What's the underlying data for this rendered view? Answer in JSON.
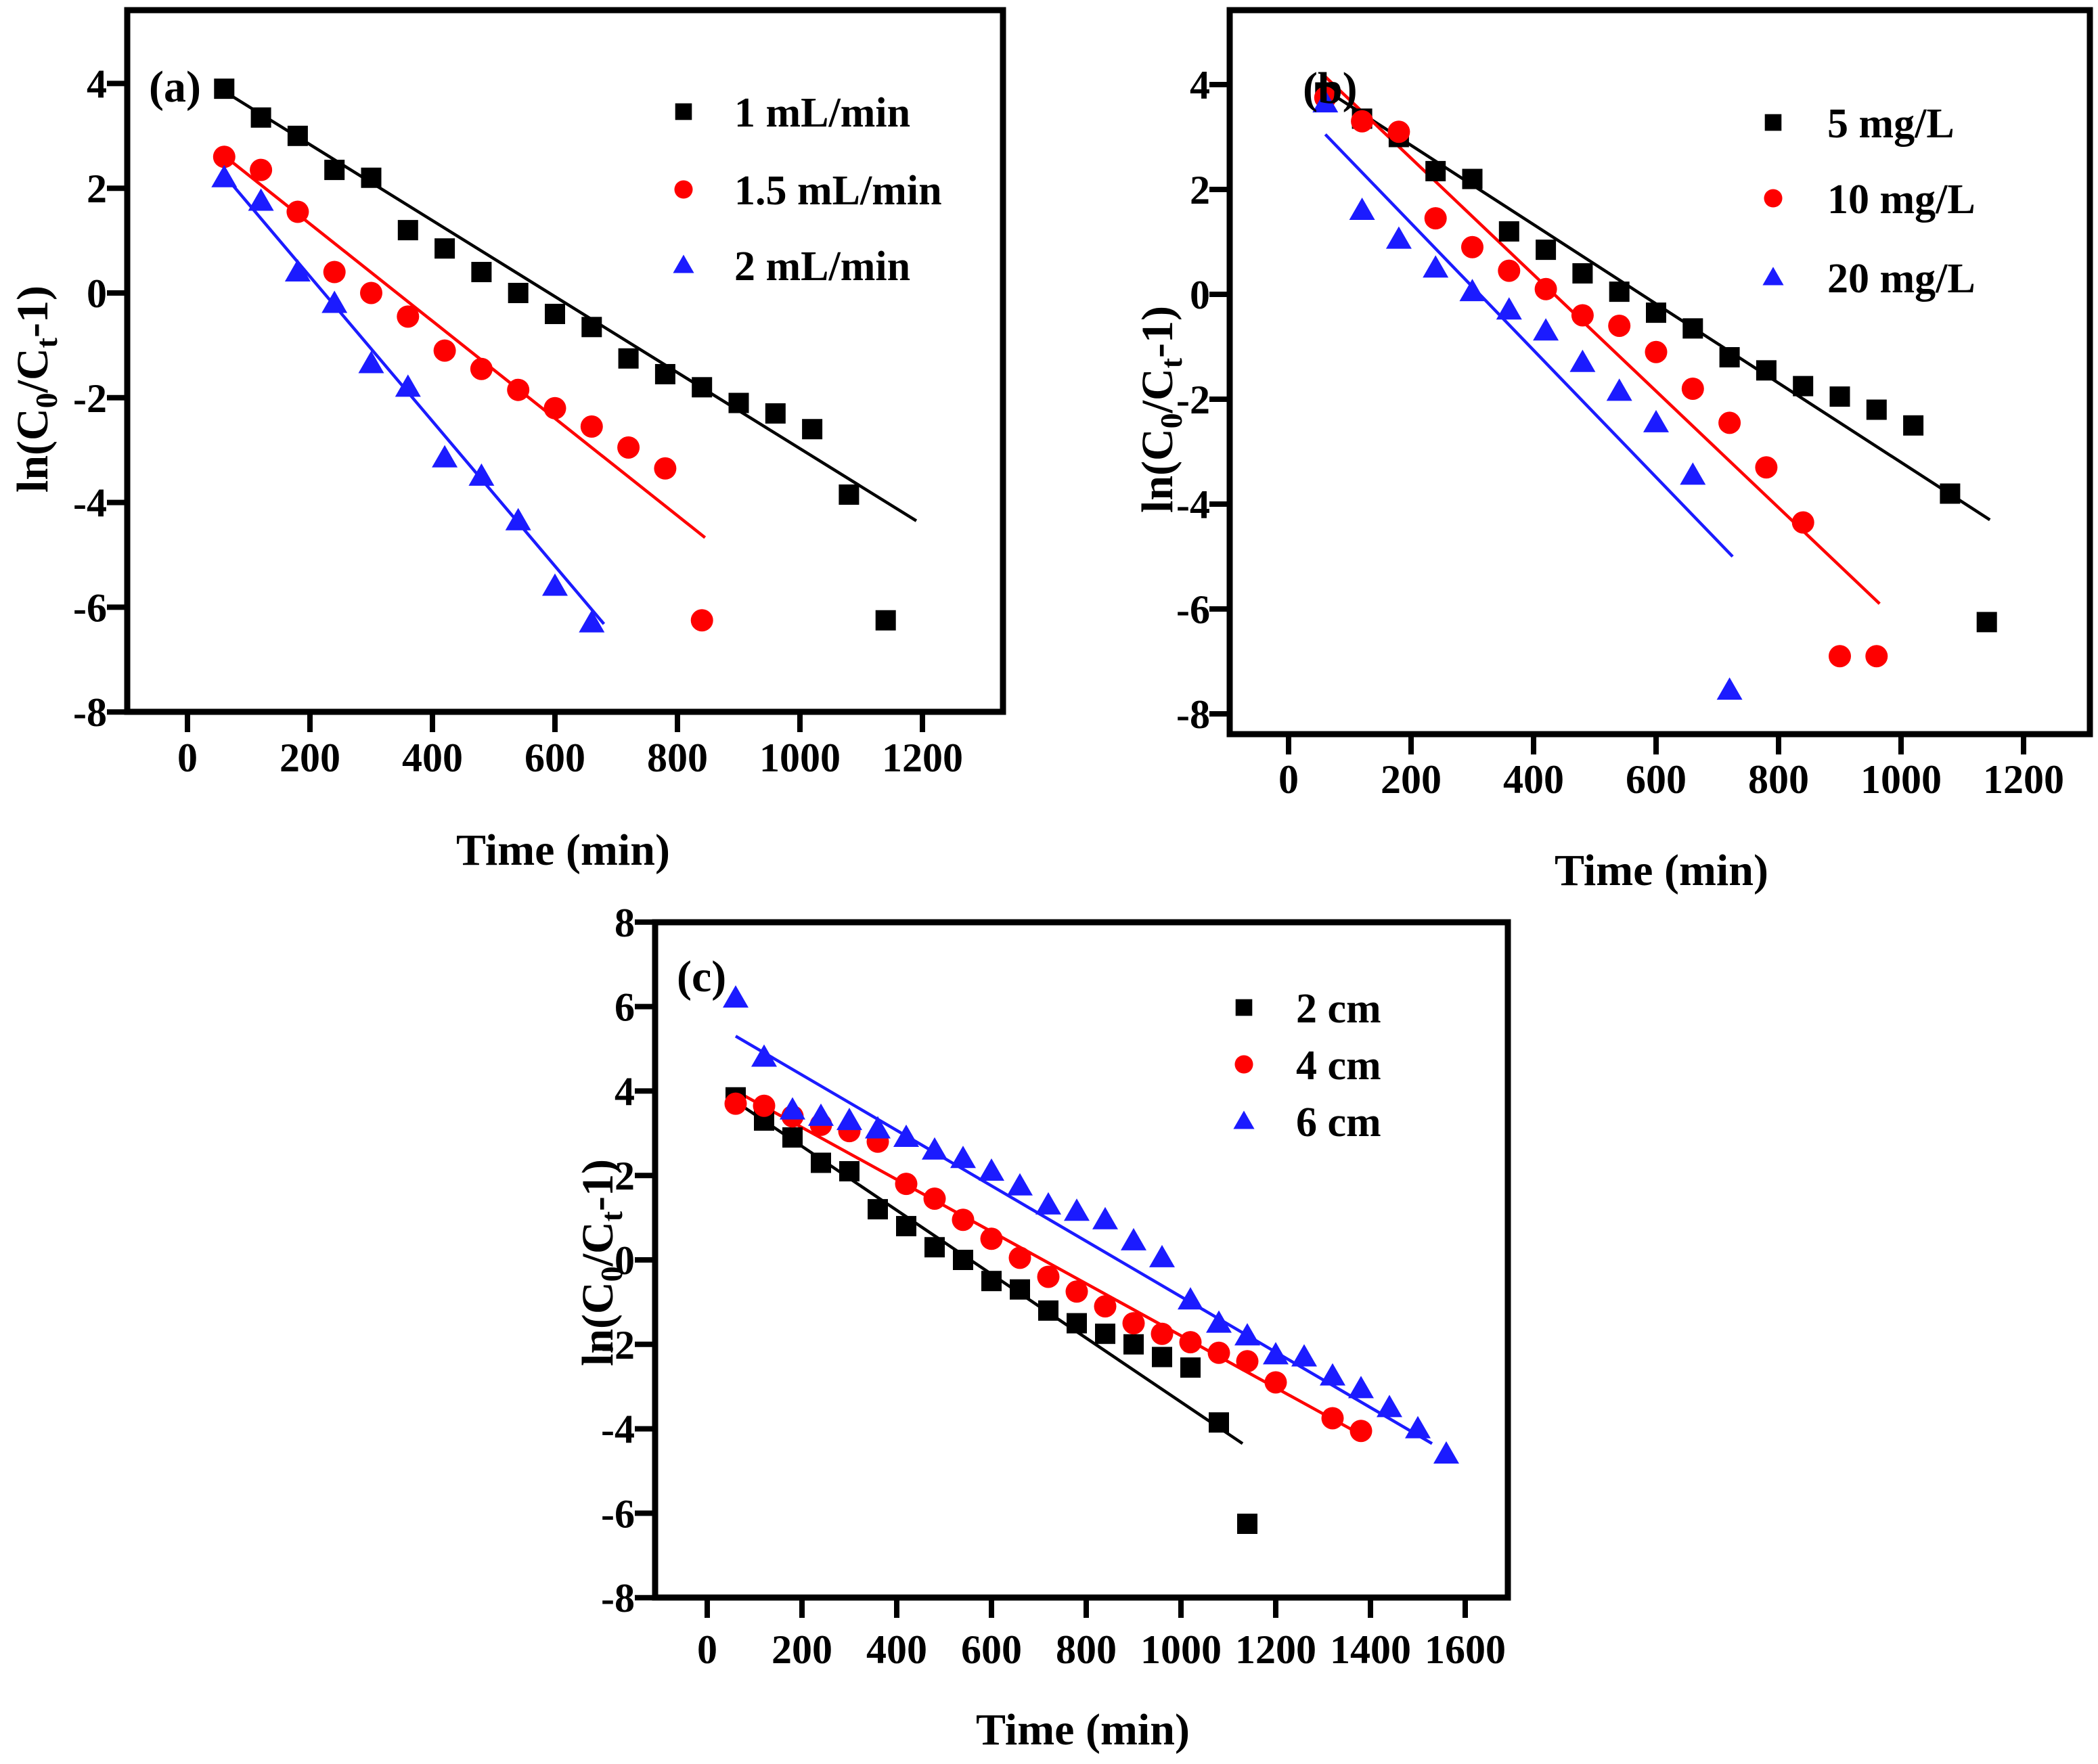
{
  "figure": {
    "background": "#ffffff",
    "axis_color": "#000000",
    "xlabel": "Time (min)",
    "ylabel_parts": [
      {
        "text": "ln(C"
      },
      {
        "text": "0",
        "sub": true
      },
      {
        "text": "/C"
      },
      {
        "text": "t",
        "sub": true
      },
      {
        "text": "-1)"
      }
    ]
  },
  "chart_data": [
    {
      "id": "a",
      "type": "scatter",
      "panel_label": "(a)",
      "xlabel": "Time (min)",
      "xlim": [
        -100,
        1300
      ],
      "ylim": [
        -8,
        5.4
      ],
      "xticks": [
        0,
        200,
        400,
        600,
        800,
        1000,
        1200
      ],
      "yticks": [
        4,
        2,
        0,
        -2,
        -4,
        -6,
        -8
      ],
      "grid": false,
      "legend_position": "top-right",
      "series": [
        {
          "name": "1 mL/min",
          "marker": "square",
          "color": "#000000",
          "x": [
            60,
            120,
            180,
            240,
            300,
            360,
            420,
            480,
            540,
            600,
            660,
            720,
            780,
            840,
            900,
            960,
            1020,
            1080,
            1140
          ],
          "y": [
            3.9,
            3.35,
            3.0,
            2.35,
            2.2,
            1.2,
            0.85,
            0.4,
            0.0,
            -0.4,
            -0.65,
            -1.25,
            -1.55,
            -1.8,
            -2.1,
            -2.3,
            -2.6,
            -3.85,
            -6.25
          ],
          "fit_line": {
            "x": [
              60,
              1190
            ],
            "y": [
              3.85,
              -4.35
            ]
          }
        },
        {
          "name": "1.5 mL/min",
          "marker": "circle",
          "color": "#fe0000",
          "x": [
            60,
            120,
            180,
            240,
            300,
            360,
            420,
            480,
            540,
            600,
            660,
            720,
            780,
            840
          ],
          "y": [
            2.6,
            2.35,
            1.55,
            0.4,
            0.0,
            -0.45,
            -1.1,
            -1.45,
            -1.85,
            -2.2,
            -2.55,
            -2.95,
            -3.35,
            -6.25
          ],
          "fit_line": {
            "x": [
              60,
              845
            ],
            "y": [
              2.62,
              -4.67
            ]
          }
        },
        {
          "name": "2 mL/min",
          "marker": "triangle",
          "color": "#1b1bff",
          "x": [
            60,
            120,
            180,
            240,
            300,
            360,
            420,
            480,
            540,
            600,
            660
          ],
          "y": [
            2.2,
            1.75,
            0.4,
            -0.2,
            -1.35,
            -1.8,
            -3.15,
            -3.5,
            -4.35,
            -5.6,
            -6.3
          ],
          "fit_line": {
            "x": [
              60,
              680
            ],
            "y": [
              2.25,
              -6.32
            ]
          }
        }
      ]
    },
    {
      "id": "b",
      "type": "scatter",
      "panel_label": "(b)",
      "xlabel": "Time (min)",
      "xlim": [
        -100,
        1300
      ],
      "ylim": [
        -8.4,
        5.4
      ],
      "xticks": [
        0,
        200,
        400,
        600,
        800,
        1000,
        1200
      ],
      "yticks": [
        4,
        2,
        0,
        -2,
        -4,
        -6,
        -8
      ],
      "grid": false,
      "legend_position": "top-right",
      "series": [
        {
          "name": "5 mg/L",
          "marker": "square",
          "color": "#000000",
          "x": [
            60,
            120,
            180,
            240,
            300,
            360,
            420,
            480,
            540,
            600,
            660,
            720,
            780,
            840,
            900,
            960,
            1020,
            1080,
            1140
          ],
          "y": [
            3.85,
            3.35,
            3.0,
            2.35,
            2.2,
            1.2,
            0.85,
            0.4,
            0.05,
            -0.35,
            -0.65,
            -1.2,
            -1.45,
            -1.75,
            -1.95,
            -2.2,
            -2.5,
            -3.8,
            -6.25
          ],
          "fit_line": {
            "x": [
              60,
              1145
            ],
            "y": [
              3.9,
              -4.3
            ]
          }
        },
        {
          "name": "10 mg/L",
          "marker": "circle",
          "color": "#fe0000",
          "x": [
            60,
            120,
            180,
            240,
            300,
            360,
            420,
            480,
            540,
            600,
            660,
            720,
            780,
            840,
            900,
            960
          ],
          "y": [
            3.75,
            3.3,
            3.1,
            1.45,
            0.9,
            0.45,
            0.1,
            -0.4,
            -0.6,
            -1.1,
            -1.8,
            -2.45,
            -3.3,
            -4.35,
            -6.9,
            -6.9
          ],
          "fit_line": {
            "x": [
              60,
              965
            ],
            "y": [
              4.15,
              -5.9
            ]
          }
        },
        {
          "name": "20 mg/L",
          "marker": "triangle",
          "color": "#1b1bff",
          "x": [
            60,
            120,
            180,
            240,
            300,
            360,
            420,
            480,
            540,
            600,
            660,
            720
          ],
          "y": [
            3.65,
            1.6,
            1.05,
            0.5,
            0.05,
            -0.3,
            -0.7,
            -1.3,
            -1.85,
            -2.45,
            -3.45,
            -7.55
          ],
          "fit_line": {
            "x": [
              60,
              725
            ],
            "y": [
              3.05,
              -5.0
            ]
          }
        }
      ]
    },
    {
      "id": "c",
      "type": "scatter",
      "panel_label": "(c)",
      "xlabel": "Time (min)",
      "xlim": [
        -110,
        1700
      ],
      "ylim": [
        -8,
        8
      ],
      "xticks": [
        0,
        200,
        400,
        600,
        800,
        1000,
        1200,
        1400,
        1600
      ],
      "yticks": [
        8,
        6,
        4,
        2,
        0,
        -2,
        -4,
        -6,
        -8
      ],
      "grid": false,
      "legend_position": "top-right",
      "series": [
        {
          "name": "2 cm",
          "marker": "square",
          "color": "#000000",
          "x": [
            60,
            120,
            180,
            240,
            300,
            360,
            420,
            480,
            540,
            600,
            660,
            720,
            780,
            840,
            900,
            960,
            1020,
            1080,
            1140
          ],
          "y": [
            3.85,
            3.3,
            2.9,
            2.3,
            2.1,
            1.2,
            0.8,
            0.3,
            0.0,
            -0.5,
            -0.7,
            -1.2,
            -1.5,
            -1.75,
            -2.0,
            -2.3,
            -2.55,
            -3.85,
            -6.25
          ],
          "fit_line": {
            "x": [
              60,
              1130
            ],
            "y": [
              3.75,
              -4.35
            ]
          }
        },
        {
          "name": "4 cm",
          "marker": "circle",
          "color": "#fe0000",
          "x": [
            60,
            120,
            180,
            240,
            300,
            360,
            420,
            480,
            540,
            600,
            660,
            720,
            780,
            840,
            900,
            960,
            1020,
            1080,
            1140,
            1200,
            1320,
            1380
          ],
          "y": [
            3.7,
            3.65,
            3.4,
            3.2,
            3.05,
            2.8,
            1.8,
            1.45,
            0.95,
            0.5,
            0.05,
            -0.4,
            -0.75,
            -1.1,
            -1.5,
            -1.75,
            -1.95,
            -2.2,
            -2.4,
            -2.9,
            -3.75,
            -4.05
          ],
          "fit_line": {
            "x": [
              60,
              1390
            ],
            "y": [
              4.0,
              -4.2
            ]
          }
        },
        {
          "name": "6 cm",
          "marker": "triangle",
          "color": "#1b1bff",
          "x": [
            60,
            120,
            180,
            240,
            300,
            360,
            420,
            480,
            540,
            600,
            660,
            720,
            780,
            840,
            900,
            960,
            1020,
            1080,
            1140,
            1200,
            1260,
            1320,
            1380,
            1440,
            1500,
            1560
          ],
          "y": [
            6.2,
            4.8,
            3.55,
            3.4,
            3.3,
            3.1,
            2.9,
            2.6,
            2.4,
            2.1,
            1.75,
            1.3,
            1.15,
            0.95,
            0.45,
            0.05,
            -0.95,
            -1.5,
            -1.8,
            -2.25,
            -2.3,
            -2.75,
            -3.05,
            -3.5,
            -4.0,
            -4.6
          ],
          "fit_line": {
            "x": [
              60,
              1530
            ],
            "y": [
              5.3,
              -4.35
            ]
          }
        }
      ]
    }
  ]
}
